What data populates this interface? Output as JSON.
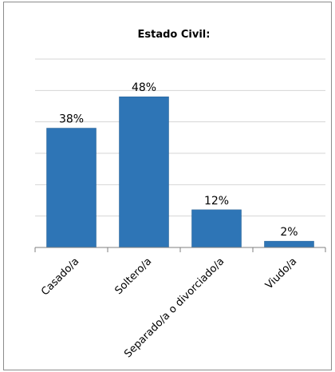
{
  "chart_data": {
    "type": "bar",
    "title": "Estado Civil:",
    "categories": [
      "Casado/a",
      "Soltero/a",
      "Separado/a o divorciado/a",
      "Viudo/a"
    ],
    "values": [
      38,
      48,
      12,
      2
    ],
    "value_labels": [
      "38%",
      "48%",
      "12%",
      "2%"
    ],
    "ylim": [
      0,
      60
    ],
    "y_unit": "%",
    "grid": true,
    "bar_color": "#2e75b6"
  }
}
